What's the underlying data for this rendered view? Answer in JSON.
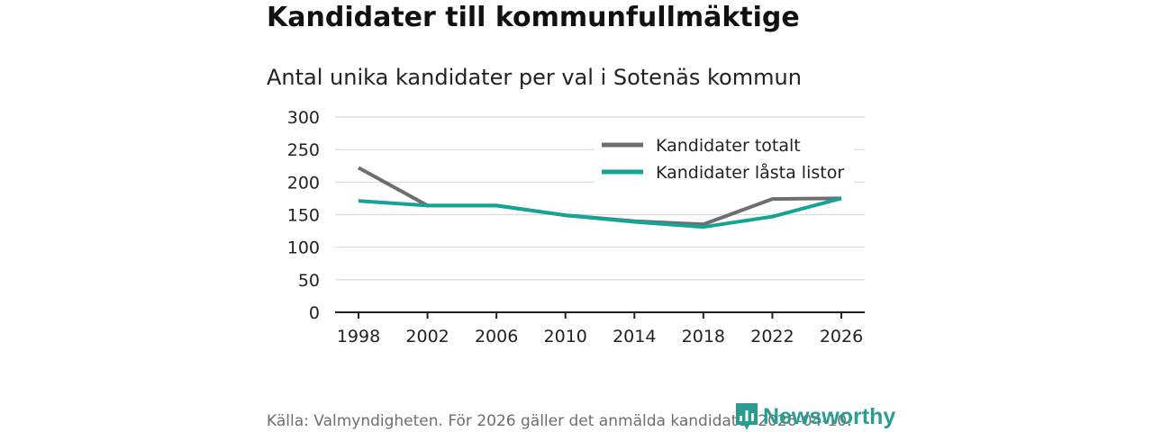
{
  "header": {
    "title": "Kandidater till kommunfullmäktige",
    "subtitle": "Antal unika kandidater per val i Sotenäs kommun"
  },
  "footer": {
    "source": "Källa: Valmyndigheten. För 2026 gäller det anmälda kandidater 2026-04-10.",
    "brand": "Newsworthy"
  },
  "colors": {
    "total": "#6d6d72",
    "locked": "#14a394",
    "grid": "#d9d9d9",
    "axis": "#222222",
    "brand": "#2a9d8f"
  },
  "icons": {
    "brand_logo": "newsworthy-logo-icon"
  },
  "chart_data": {
    "type": "line",
    "title": "Kandidater till kommunfullmäktige",
    "subtitle": "Antal unika kandidater per val i Sotenäs kommun",
    "xlabel": "",
    "ylabel": "",
    "x": [
      "1998",
      "2002",
      "2006",
      "2010",
      "2014",
      "2018",
      "2022",
      "2026"
    ],
    "series": [
      {
        "name": "Kandidater totalt",
        "values": [
          222,
          164,
          164,
          149,
          140,
          135,
          174,
          175
        ]
      },
      {
        "name": "Kandidater låsta listor",
        "values": [
          171,
          164,
          164,
          149,
          139,
          131,
          147,
          175
        ]
      }
    ],
    "ylim": [
      0,
      300
    ],
    "yticks": [
      0,
      50,
      100,
      150,
      200,
      250,
      300
    ],
    "grid": true,
    "legend": "top-right"
  }
}
